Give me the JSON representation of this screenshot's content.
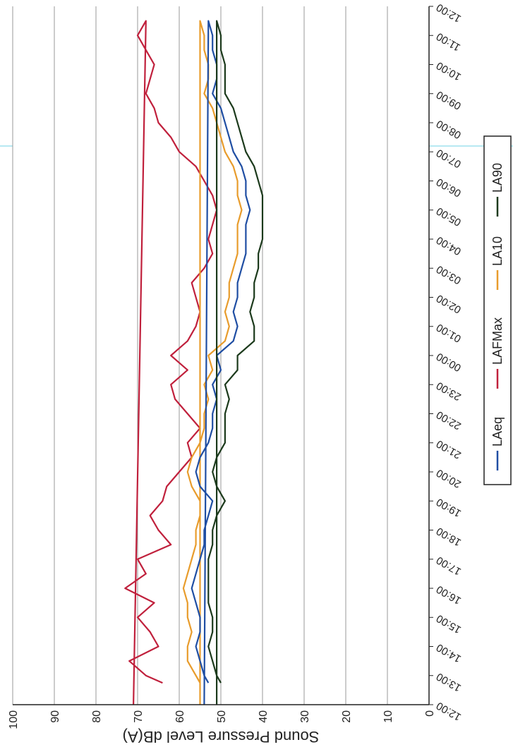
{
  "colors": {
    "laeq": "#1f4ea3",
    "lafmax": "#c0203c",
    "la10": "#e89c2c",
    "la90": "#1c3a1c",
    "grid": "#9a9a9a",
    "scan_line": "#9fe2ee"
  },
  "chart_data": {
    "type": "line",
    "title": "",
    "xlabel": "",
    "ylabel": "Sound Pressure Level dB(A)",
    "ylim": [
      0,
      100
    ],
    "yticks": [
      "0",
      "10",
      "20",
      "30",
      "40",
      "50",
      "60",
      "70",
      "80",
      "90",
      "100"
    ],
    "xticks": [
      "12:00",
      "13:00",
      "14:00",
      "15:00",
      "16:00",
      "17:00",
      "18:00",
      "19:00",
      "20:00",
      "21:00",
      "22:00",
      "23:00",
      "00:00",
      "01:00",
      "02:00",
      "03:00",
      "04:00",
      "05:00",
      "06:00",
      "07:00",
      "08:00",
      "09:00",
      "10:00",
      "11:00",
      "12:00"
    ],
    "grid": true,
    "legend_position": "bottom",
    "x": [
      "12:45",
      "13:00",
      "13:30",
      "14:00",
      "14:30",
      "15:00",
      "15:30",
      "16:00",
      "16:30",
      "17:00",
      "17:30",
      "18:00",
      "18:30",
      "19:00",
      "19:30",
      "20:00",
      "20:30",
      "21:00",
      "21:30",
      "22:00",
      "22:30",
      "23:00",
      "23:30",
      "00:00",
      "00:30",
      "01:00",
      "01:30",
      "02:00",
      "02:30",
      "03:00",
      "03:30",
      "04:00",
      "04:30",
      "05:00",
      "05:30",
      "06:00",
      "06:30",
      "07:00",
      "07:30",
      "08:00",
      "08:30",
      "09:00",
      "09:30",
      "10:00",
      "10:30",
      "11:00",
      "11:30",
      "12:00"
    ],
    "series": [
      {
        "name": "LAeq",
        "color": "#1f4ea3",
        "values": [
          53,
          54,
          55,
          56,
          55,
          55,
          56,
          57,
          56,
          55,
          54,
          54,
          53,
          52,
          55,
          56,
          55,
          53,
          52,
          52,
          51,
          52,
          50,
          51,
          47,
          46,
          47,
          46,
          46,
          45,
          44,
          44,
          44,
          43,
          44,
          44,
          45,
          47,
          48,
          49,
          50,
          52,
          51,
          51,
          52,
          52,
          53,
          54
        ]
      },
      {
        "name": "LAFMax",
        "color": "#c0203c",
        "values": [
          64,
          68,
          72,
          65,
          67,
          70,
          66,
          73,
          68,
          70,
          62,
          65,
          67,
          64,
          63,
          60,
          57,
          58,
          55,
          58,
          61,
          62,
          58,
          62,
          58,
          56,
          55,
          56,
          57,
          54,
          52,
          53,
          52,
          51,
          52,
          54,
          56,
          60,
          62,
          65,
          66,
          68,
          67,
          66,
          68,
          70,
          68,
          71
        ]
      },
      {
        "name": "LA10",
        "color": "#e89c2c",
        "values": [
          55,
          56,
          58,
          58,
          57,
          58,
          58,
          59,
          58,
          57,
          56,
          56,
          55,
          55,
          57,
          58,
          57,
          55,
          54,
          54,
          53,
          54,
          52,
          53,
          49,
          48,
          49,
          48,
          48,
          47,
          46,
          46,
          46,
          45,
          46,
          46,
          47,
          49,
          50,
          51,
          52,
          54,
          53,
          53,
          54,
          54,
          55,
          55
        ]
      },
      {
        "name": "LA90",
        "color": "#1c3a1c",
        "values": [
          50,
          51,
          52,
          53,
          52,
          52,
          53,
          53,
          53,
          53,
          52,
          52,
          51,
          49,
          51,
          52,
          51,
          49,
          49,
          49,
          48,
          49,
          46,
          46,
          42,
          42,
          43,
          42,
          42,
          41,
          41,
          40,
          40,
          40,
          40,
          41,
          42,
          44,
          45,
          46,
          47,
          49,
          49,
          49,
          50,
          50,
          51,
          51
        ]
      }
    ]
  }
}
